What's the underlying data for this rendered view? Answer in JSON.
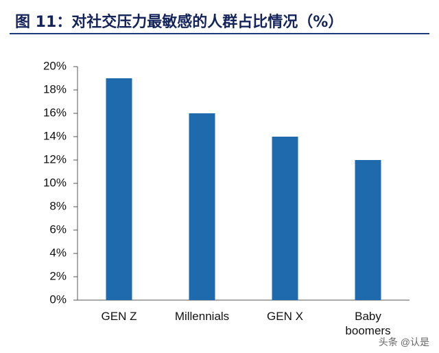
{
  "chart_data": {
    "type": "bar",
    "title": "图 11：对社交压力最敏感的人群占比情况（%）",
    "categories": [
      "GEN Z",
      "Millennials",
      "GEN X",
      "Baby boomers"
    ],
    "values": [
      19,
      16,
      14,
      12
    ],
    "color": "#1f6aad",
    "ylim": [
      0,
      20
    ],
    "yticks": [
      {
        "value": 0,
        "label": "0%"
      },
      {
        "value": 2,
        "label": "2%"
      },
      {
        "value": 4,
        "label": "4%"
      },
      {
        "value": 6,
        "label": "6%"
      },
      {
        "value": 8,
        "label": "8%"
      },
      {
        "value": 10,
        "label": "10%"
      },
      {
        "value": 12,
        "label": "12%"
      },
      {
        "value": 14,
        "label": "14%"
      },
      {
        "value": 16,
        "label": "16%"
      },
      {
        "value": 18,
        "label": "18%"
      },
      {
        "value": 20,
        "label": "20%"
      }
    ],
    "grid": false,
    "watermark": "头条 @认是"
  }
}
